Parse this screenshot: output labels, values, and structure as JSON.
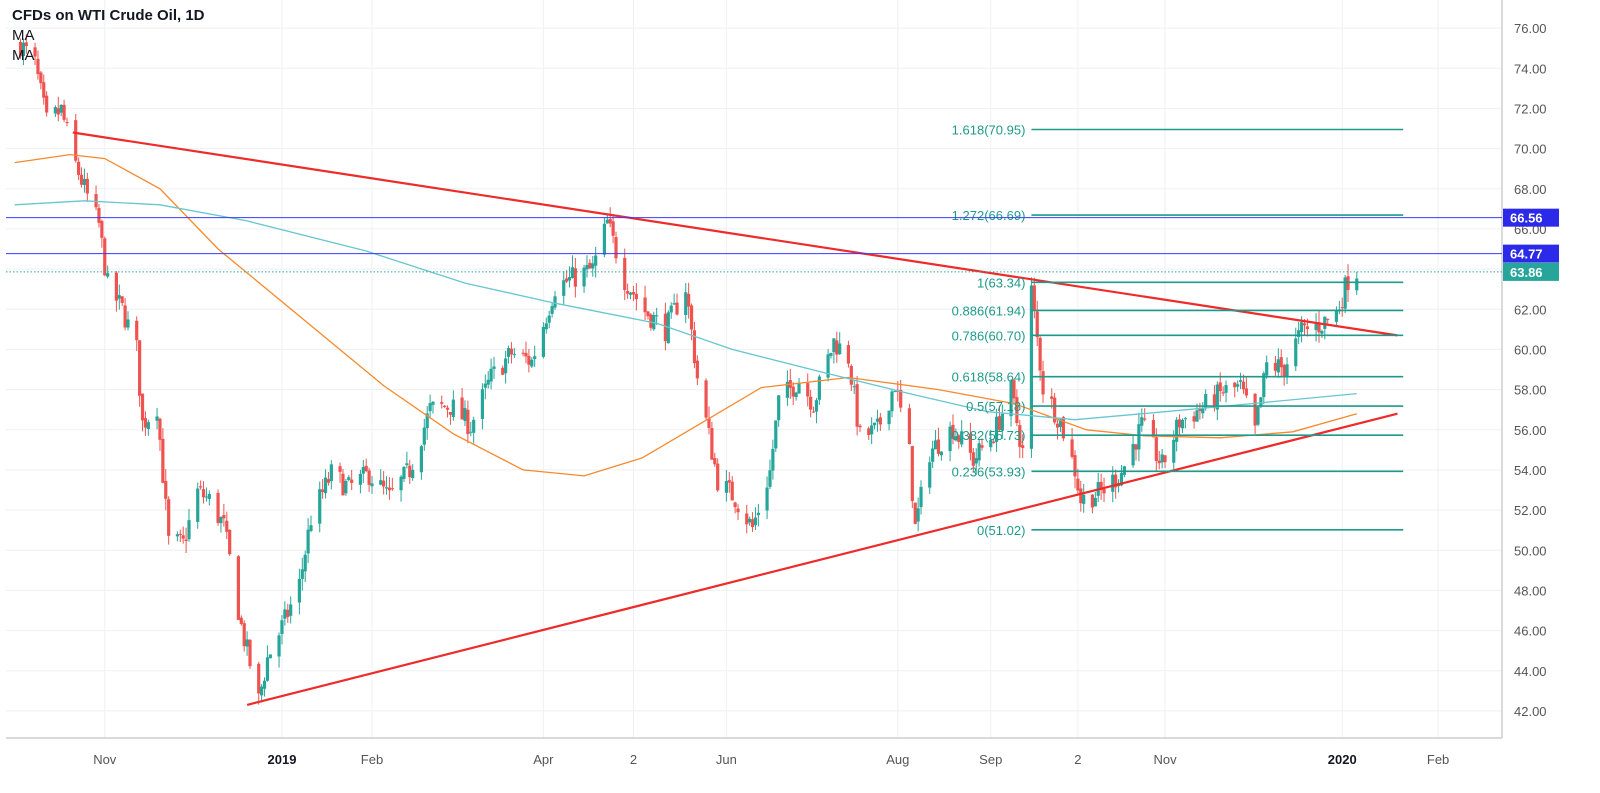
{
  "chart_data": {
    "type": "candlestick",
    "title": "CFDs on WTI Crude Oil, 1D",
    "indicators": [
      "MA",
      "MA"
    ],
    "ylim": [
      41,
      77
    ],
    "y_ticks": [
      "42.00",
      "44.00",
      "46.00",
      "48.00",
      "50.00",
      "52.00",
      "54.00",
      "56.00",
      "58.00",
      "60.00",
      "62.00",
      "64.00",
      "66.00",
      "68.00",
      "70.00",
      "72.00",
      "74.00",
      "76.00"
    ],
    "x_ticks": [
      {
        "label": "Nov",
        "date": "2018-11-01"
      },
      {
        "label": "2019",
        "date": "2019-01-01",
        "bold": true
      },
      {
        "label": "Feb",
        "date": "2019-02-01"
      },
      {
        "label": "Apr",
        "date": "2019-04-01"
      },
      {
        "label": "2",
        "date": "2019-05-02"
      },
      {
        "label": "Jun",
        "date": "2019-06-03"
      },
      {
        "label": "Aug",
        "date": "2019-08-01"
      },
      {
        "label": "Sep",
        "date": "2019-09-02"
      },
      {
        "label": "2",
        "date": "2019-10-02"
      },
      {
        "label": "Nov",
        "date": "2019-11-01"
      },
      {
        "label": "2020",
        "date": "2020-01-01",
        "bold": true
      },
      {
        "label": "Feb",
        "date": "2020-02-03"
      }
    ],
    "price_path": [
      [
        "2018-10-03",
        75.2
      ],
      [
        "2018-10-08",
        74.2
      ],
      [
        "2018-10-12",
        71.3
      ],
      [
        "2018-10-17",
        71.9
      ],
      [
        "2018-10-22",
        69.2
      ],
      [
        "2018-10-26",
        67.6
      ],
      [
        "2018-10-30",
        66.2
      ],
      [
        "2018-11-02",
        63.2
      ],
      [
        "2018-11-07",
        62.0
      ],
      [
        "2018-11-12",
        60.0
      ],
      [
        "2018-11-14",
        56.3
      ],
      [
        "2018-11-19",
        57.2
      ],
      [
        "2018-11-23",
        50.4
      ],
      [
        "2018-11-28",
        50.3
      ],
      [
        "2018-12-03",
        52.9
      ],
      [
        "2018-12-07",
        52.5
      ],
      [
        "2018-12-12",
        51.2
      ],
      [
        "2018-12-18",
        46.2
      ],
      [
        "2018-12-24",
        42.5
      ],
      [
        "2018-12-27",
        44.6
      ],
      [
        "2019-01-02",
        46.5
      ],
      [
        "2019-01-07",
        48.3
      ],
      [
        "2019-01-11",
        51.6
      ],
      [
        "2019-01-18",
        53.8
      ],
      [
        "2019-01-24",
        53.1
      ],
      [
        "2019-01-31",
        53.8
      ],
      [
        "2019-02-07",
        52.6
      ],
      [
        "2019-02-14",
        54.0
      ],
      [
        "2019-02-21",
        57.0
      ],
      [
        "2019-02-28",
        57.2
      ],
      [
        "2019-03-07",
        56.2
      ],
      [
        "2019-03-14",
        58.6
      ],
      [
        "2019-03-21",
        59.8
      ],
      [
        "2019-03-28",
        59.4
      ],
      [
        "2019-04-05",
        63.1
      ],
      [
        "2019-04-12",
        63.6
      ],
      [
        "2019-04-18",
        64.0
      ],
      [
        "2019-04-23",
        66.3
      ],
      [
        "2019-04-29",
        63.5
      ],
      [
        "2019-05-06",
        61.9
      ],
      [
        "2019-05-13",
        61.0
      ],
      [
        "2019-05-20",
        63.1
      ],
      [
        "2019-05-24",
        58.6
      ],
      [
        "2019-05-31",
        53.5
      ],
      [
        "2019-06-06",
        52.6
      ],
      [
        "2019-06-12",
        51.1
      ],
      [
        "2019-06-18",
        53.9
      ],
      [
        "2019-06-21",
        57.4
      ],
      [
        "2019-06-28",
        58.5
      ],
      [
        "2019-07-03",
        57.3
      ],
      [
        "2019-07-10",
        60.4
      ],
      [
        "2019-07-15",
        59.6
      ],
      [
        "2019-07-19",
        55.6
      ],
      [
        "2019-07-25",
        56.0
      ],
      [
        "2019-07-31",
        58.3
      ],
      [
        "2019-08-05",
        54.8
      ],
      [
        "2019-08-07",
        51.1
      ],
      [
        "2019-08-12",
        54.9
      ],
      [
        "2019-08-20",
        56.1
      ],
      [
        "2019-08-27",
        54.5
      ],
      [
        "2019-09-03",
        55.8
      ],
      [
        "2019-09-09",
        57.9
      ],
      [
        "2019-09-13",
        54.9
      ],
      [
        "2019-09-16",
        62.9
      ],
      [
        "2019-09-20",
        58.1
      ],
      [
        "2019-09-26",
        56.4
      ],
      [
        "2019-10-01",
        54.0
      ],
      [
        "2019-10-03",
        52.5
      ],
      [
        "2019-10-10",
        52.9
      ],
      [
        "2019-10-17",
        53.9
      ],
      [
        "2019-10-24",
        56.2
      ],
      [
        "2019-10-31",
        54.2
      ],
      [
        "2019-11-06",
        56.4
      ],
      [
        "2019-11-14",
        57.1
      ],
      [
        "2019-11-21",
        57.9
      ],
      [
        "2019-11-27",
        58.1
      ],
      [
        "2019-12-02",
        55.9
      ],
      [
        "2019-12-06",
        59.2
      ],
      [
        "2019-12-12",
        59.1
      ],
      [
        "2019-12-18",
        60.9
      ],
      [
        "2019-12-24",
        61.2
      ],
      [
        "2019-12-30",
        61.8
      ],
      [
        "2020-01-03",
        63.5
      ],
      [
        "2020-01-06",
        63.9
      ]
    ],
    "ma_series": [
      {
        "color": "#f7892d",
        "points": [
          [
            "2018-10-01",
            69.3
          ],
          [
            "2018-10-20",
            69.7
          ],
          [
            "2018-11-01",
            69.5
          ],
          [
            "2018-11-20",
            68.0
          ],
          [
            "2018-12-10",
            65.0
          ],
          [
            "2019-01-10",
            61.3
          ],
          [
            "2019-02-05",
            58.2
          ],
          [
            "2019-03-01",
            55.8
          ],
          [
            "2019-03-25",
            54.0
          ],
          [
            "2019-04-15",
            53.7
          ],
          [
            "2019-05-05",
            54.6
          ],
          [
            "2019-05-25",
            56.3
          ],
          [
            "2019-06-15",
            58.1
          ],
          [
            "2019-07-15",
            58.6
          ],
          [
            "2019-08-15",
            58.0
          ],
          [
            "2019-09-10",
            57.3
          ],
          [
            "2019-10-05",
            56.0
          ],
          [
            "2019-10-25",
            55.7
          ],
          [
            "2019-11-20",
            55.6
          ],
          [
            "2019-12-15",
            55.9
          ],
          [
            "2020-01-06",
            56.8
          ]
        ]
      },
      {
        "color": "#67c6d0",
        "points": [
          [
            "2018-10-01",
            67.2
          ],
          [
            "2018-10-25",
            67.4
          ],
          [
            "2018-11-20",
            67.2
          ],
          [
            "2018-12-20",
            66.4
          ],
          [
            "2019-01-30",
            64.9
          ],
          [
            "2019-03-05",
            63.3
          ],
          [
            "2019-04-05",
            62.3
          ],
          [
            "2019-05-10",
            61.3
          ],
          [
            "2019-06-05",
            60.0
          ],
          [
            "2019-07-05",
            58.9
          ],
          [
            "2019-08-05",
            57.8
          ],
          [
            "2019-09-01",
            56.9
          ],
          [
            "2019-10-01",
            56.5
          ],
          [
            "2019-11-01",
            56.9
          ],
          [
            "2019-12-01",
            57.3
          ],
          [
            "2020-01-06",
            57.8
          ]
        ]
      }
    ],
    "trend_lines": [
      {
        "color": "#ee2b2b",
        "from": [
          "2018-10-21",
          70.8
        ],
        "to": [
          "2020-01-20",
          60.7
        ]
      },
      {
        "color": "#ee2b2b",
        "from": [
          "2018-12-20",
          42.3
        ],
        "to": [
          "2020-01-20",
          56.8
        ]
      }
    ],
    "horizontal_lines": [
      {
        "value": 66.56,
        "color": "#3a3aff",
        "label": "66.56"
      },
      {
        "value": 64.77,
        "color": "#3a3aff",
        "label": "64.77"
      },
      {
        "value": 63.86,
        "color": "#26a69a",
        "label": "63.86",
        "dotted": true
      }
    ],
    "fib_levels": [
      {
        "label": "1.618(70.95)",
        "value": 70.95
      },
      {
        "label": "1.272(66.69)",
        "value": 66.69
      },
      {
        "label": "1(63.34)",
        "value": 63.34
      },
      {
        "label": "0.886(61.94)",
        "value": 61.94
      },
      {
        "label": "0.786(60.70)",
        "value": 60.7
      },
      {
        "label": "0.618(58.64)",
        "value": 58.64
      },
      {
        "label": "0.5(57.18)",
        "value": 57.18
      },
      {
        "label": "0.382(55.73)",
        "value": 55.73
      },
      {
        "label": "0.236(53.93)",
        "value": 53.93
      },
      {
        "label": "0(51.02)",
        "value": 51.02
      }
    ],
    "fib_range": {
      "start": "2019-09-16",
      "end": "2020-01-22"
    },
    "colors": {
      "up": "#26a69a",
      "down": "#ef5350",
      "grid": "#eef0f3",
      "axis_text": "#555555",
      "fib": "#1f9a8a"
    }
  }
}
